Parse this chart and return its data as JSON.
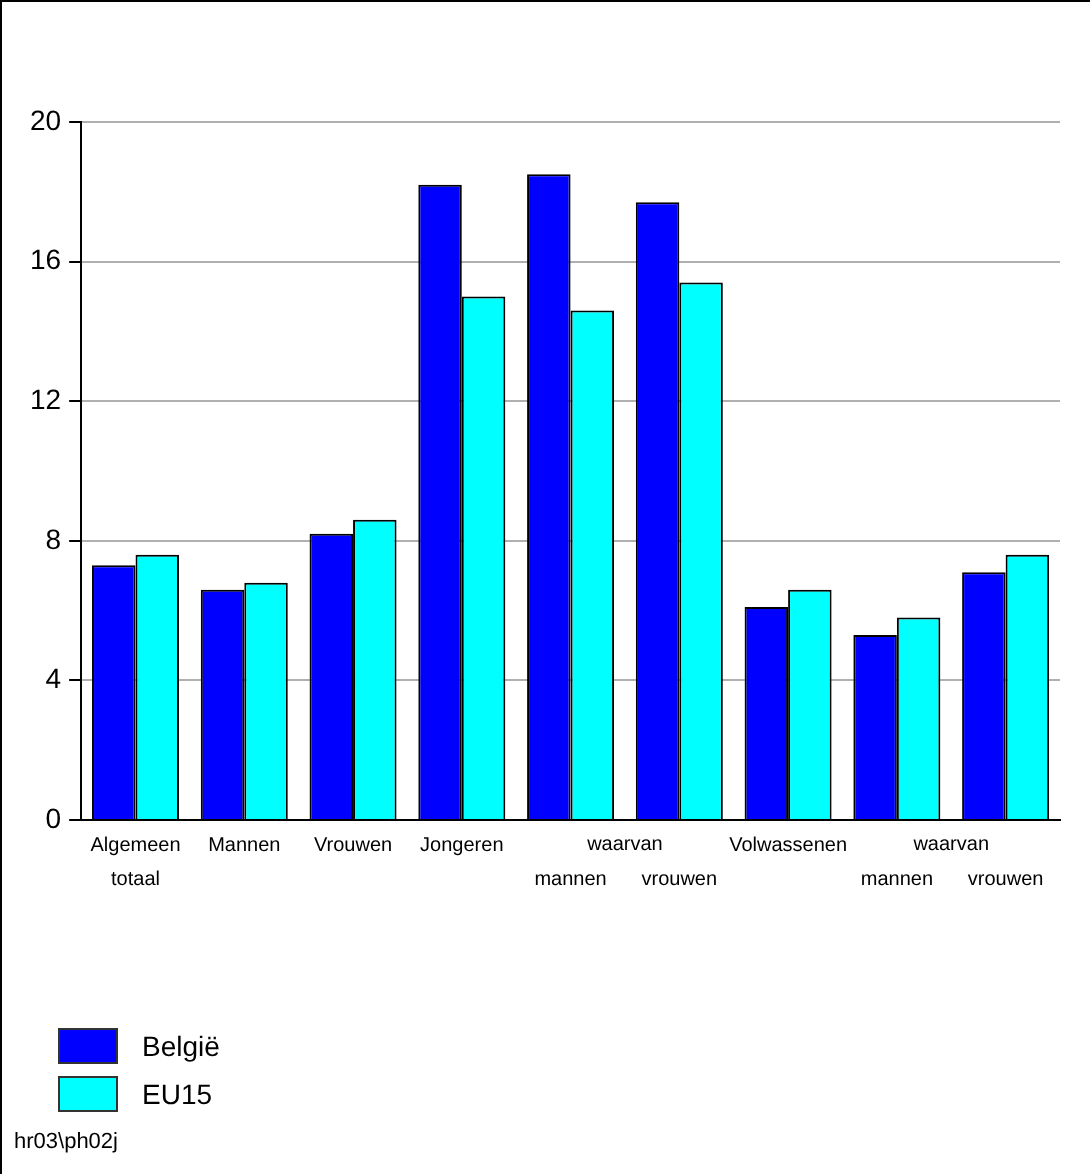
{
  "chart_data": {
    "type": "bar",
    "categories": [
      "Algemeen totaal",
      "Mannen",
      "Vrouwen",
      "Jongeren",
      "mannen",
      "vrouwen",
      "Volwassenen",
      "mannen",
      "vrouwen"
    ],
    "series": [
      {
        "name": "België",
        "color": "#0000ff",
        "values": [
          7.3,
          6.6,
          8.2,
          18.2,
          18.5,
          17.7,
          6.1,
          5.3,
          7.1
        ]
      },
      {
        "name": "EU15",
        "color": "#00ffff",
        "values": [
          7.6,
          6.8,
          8.6,
          15.0,
          14.6,
          15.4,
          6.6,
          5.8,
          7.6
        ]
      }
    ],
    "ylim": [
      0,
      20
    ],
    "yticks": [
      0,
      4,
      8,
      12,
      16,
      20
    ],
    "grid": "y",
    "legend": "bottom left",
    "annotations": [
      "waarvan",
      "waarvan",
      "hr03\\ph02j"
    ]
  }
}
